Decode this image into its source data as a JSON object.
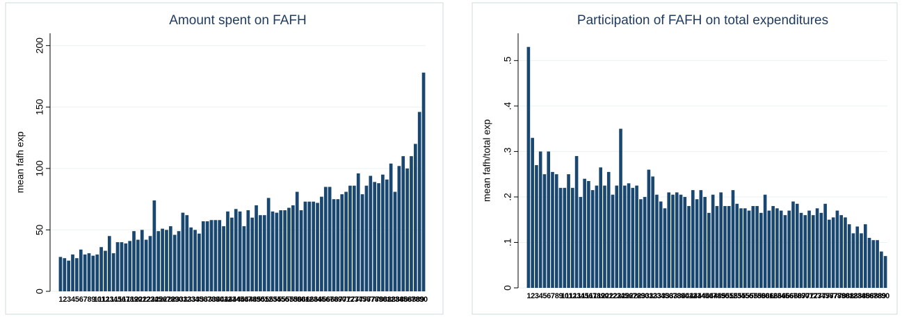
{
  "chart_data": [
    {
      "type": "bar",
      "title": "Amount spent on FAFH",
      "y_label": "mean fafh exp",
      "color": "#1a476f",
      "grid": true,
      "categories": [
        "1",
        "2",
        "3",
        "4",
        "5",
        "6",
        "7",
        "8",
        "9",
        "10",
        "11",
        "12",
        "13",
        "14",
        "15",
        "16",
        "17",
        "18",
        "19",
        "20",
        "21",
        "22",
        "23",
        "24",
        "25",
        "26",
        "27",
        "28",
        "29",
        "30",
        "31",
        "32",
        "33",
        "34",
        "35",
        "36",
        "37",
        "38",
        "39",
        "40",
        "41",
        "42",
        "43",
        "44",
        "45",
        "46",
        "47",
        "48",
        "49",
        "50",
        "51",
        "52",
        "53",
        "54",
        "55",
        "56",
        "57",
        "58",
        "59",
        "60",
        "61",
        "62",
        "63",
        "64",
        "65",
        "66",
        "67",
        "68",
        "69",
        "70",
        "71",
        "72",
        "73",
        "74",
        "75",
        "76",
        "77",
        "78",
        "79",
        "80",
        "81",
        "82",
        "83",
        "84",
        "85",
        "86",
        "87",
        "88",
        "89",
        "90"
      ],
      "values": [
        28,
        27,
        25,
        30,
        27,
        34,
        30,
        31,
        29,
        30,
        36,
        33,
        45,
        31,
        40,
        40,
        39,
        41,
        49,
        42,
        50,
        42,
        45,
        74,
        49,
        51,
        50,
        53,
        46,
        49,
        64,
        62,
        52,
        50,
        47,
        57,
        57,
        58,
        58,
        58,
        53,
        65,
        60,
        67,
        65,
        53,
        66,
        60,
        70,
        62,
        62,
        76,
        65,
        64,
        66,
        66,
        68,
        70,
        81,
        66,
        73,
        73,
        73,
        72,
        77,
        85,
        85,
        75,
        75,
        79,
        81,
        86,
        86,
        96,
        79,
        86,
        94,
        89,
        88,
        95,
        91,
        104,
        81,
        102,
        110,
        100,
        110,
        120,
        146,
        178
      ],
      "ylim": [
        0,
        210
      ],
      "yticks": [
        0,
        50,
        100,
        150,
        200
      ]
    },
    {
      "type": "bar",
      "title": "Participation of FAFH on total expenditures",
      "y_label": "mean fafh/total exp",
      "color": "#1a476f",
      "grid": true,
      "categories": [
        "1",
        "2",
        "3",
        "4",
        "5",
        "6",
        "7",
        "8",
        "9",
        "10",
        "11",
        "12",
        "13",
        "14",
        "15",
        "16",
        "17",
        "18",
        "19",
        "20",
        "21",
        "22",
        "23",
        "24",
        "25",
        "26",
        "27",
        "28",
        "29",
        "30",
        "31",
        "32",
        "33",
        "34",
        "35",
        "36",
        "37",
        "38",
        "39",
        "40",
        "41",
        "42",
        "43",
        "44",
        "45",
        "46",
        "47",
        "48",
        "49",
        "50",
        "51",
        "52",
        "53",
        "54",
        "55",
        "56",
        "57",
        "58",
        "59",
        "60",
        "61",
        "62",
        "63",
        "64",
        "65",
        "66",
        "67",
        "68",
        "69",
        "70",
        "71",
        "72",
        "73",
        "74",
        "75",
        "76",
        "77",
        "78",
        "79",
        "80",
        "81",
        "82",
        "83",
        "84",
        "85",
        "86",
        "87",
        "88",
        "89",
        "90"
      ],
      "values": [
        0.53,
        0.33,
        0.27,
        0.3,
        0.25,
        0.3,
        0.255,
        0.25,
        0.22,
        0.22,
        0.25,
        0.22,
        0.29,
        0.2,
        0.24,
        0.235,
        0.215,
        0.225,
        0.265,
        0.225,
        0.255,
        0.205,
        0.225,
        0.35,
        0.225,
        0.23,
        0.22,
        0.225,
        0.195,
        0.2,
        0.26,
        0.245,
        0.205,
        0.19,
        0.175,
        0.21,
        0.205,
        0.21,
        0.205,
        0.2,
        0.18,
        0.215,
        0.195,
        0.215,
        0.2,
        0.165,
        0.205,
        0.18,
        0.21,
        0.18,
        0.18,
        0.215,
        0.185,
        0.175,
        0.175,
        0.17,
        0.18,
        0.18,
        0.165,
        0.205,
        0.17,
        0.18,
        0.175,
        0.17,
        0.16,
        0.17,
        0.19,
        0.185,
        0.165,
        0.16,
        0.17,
        0.16,
        0.175,
        0.165,
        0.185,
        0.15,
        0.155,
        0.17,
        0.16,
        0.155,
        0.14,
        0.12,
        0.135,
        0.12,
        0.14,
        0.11,
        0.105,
        0.105,
        0.08,
        0.07
      ],
      "ylim": [
        0,
        0.56
      ],
      "yticks": [
        0,
        {
          "value": 0.1,
          "label": ".1"
        },
        {
          "value": 0.2,
          "label": ".2"
        },
        {
          "value": 0.3,
          "label": ".3"
        },
        {
          "value": 0.4,
          "label": ".4"
        },
        {
          "value": 0.5,
          "label": ".5"
        }
      ]
    }
  ]
}
